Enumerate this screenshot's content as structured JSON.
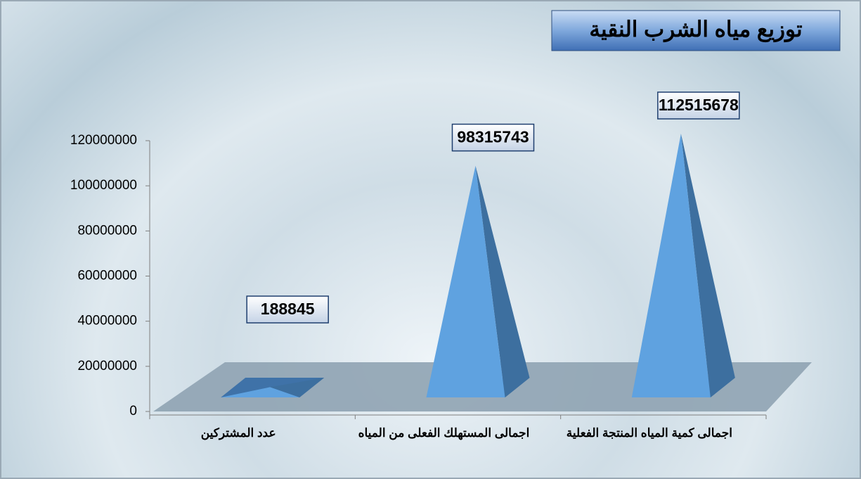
{
  "chart_data": {
    "type": "pyramid3d",
    "title": "توزيع مياه الشرب النقية",
    "categories": [
      "عدد المشتركين",
      "اجمالى المستهلك الفعلى من المياه",
      "اجمالى كمية المياه المنتجة الفعلية"
    ],
    "values": [
      188845,
      98315743,
      112515678
    ],
    "color": "#5fa2e0",
    "ylim": [
      0,
      120000000
    ],
    "yticks": [
      0,
      20000000,
      40000000,
      60000000,
      80000000,
      100000000,
      120000000
    ]
  }
}
